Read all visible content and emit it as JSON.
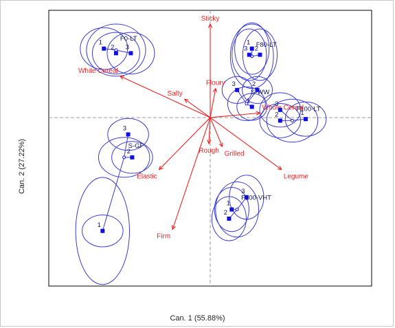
{
  "chart_data": {
    "type": "scatter",
    "subtype": "canonical variate biplot",
    "title": "",
    "xlabel": "Can. 1 (55.88%)",
    "ylabel": "Can. 2 (27.22%)",
    "xlim": [
      -6,
      6
    ],
    "ylim": [
      -5.5,
      3.5
    ],
    "grid": false,
    "legend": "none",
    "colors": {
      "points": "#1010e0",
      "ellipses": "#3a3ad8",
      "vectors": "#ee2222",
      "axis_lines": "#9a9a9a",
      "frame": "#000000"
    },
    "groups": [
      {
        "name": "F0-LT",
        "centroid": [
          -3.5,
          2.2
        ],
        "ellipse_rx": 1.1,
        "ellipse_ry": 0.85,
        "points": [
          {
            "label": "1",
            "x": -3.95,
            "y": 2.25
          },
          {
            "label": "2",
            "x": -3.5,
            "y": 2.1
          },
          {
            "label": "3",
            "x": -2.95,
            "y": 2.1
          }
        ]
      },
      {
        "name": "F80-LT",
        "centroid": [
          1.55,
          2.0
        ],
        "ellipse_rx": 0.8,
        "ellipse_ry": 1.05,
        "points": [
          {
            "label": "1",
            "x": 1.55,
            "y": 2.25
          },
          {
            "label": "2",
            "x": 1.85,
            "y": 2.05
          },
          {
            "label": "3",
            "x": 1.45,
            "y": 2.05
          }
        ]
      },
      {
        "name": "S-WW",
        "centroid": [
          1.35,
          0.45
        ],
        "ellipse_rx": 0.7,
        "ellipse_ry": 0.55,
        "points": [
          {
            "label": "1",
            "x": 1.55,
            "y": 0.35
          },
          {
            "label": "2",
            "x": 1.75,
            "y": 0.9
          },
          {
            "label": "3",
            "x": 1.0,
            "y": 0.9
          }
        ]
      },
      {
        "name": "F100-LT",
        "centroid": [
          3.05,
          -0.1
        ],
        "ellipse_rx": 0.95,
        "ellipse_ry": 0.7,
        "points": [
          {
            "label": "1",
            "x": 3.55,
            "y": -0.05
          },
          {
            "label": "2",
            "x": 2.6,
            "y": -0.1
          },
          {
            "label": "3",
            "x": 2.6,
            "y": 0.25
          }
        ]
      },
      {
        "name": "F100-VHT",
        "centroid": [
          1.0,
          -3.0
        ],
        "ellipse_rx": 0.8,
        "ellipse_ry": 0.9,
        "points": [
          {
            "label": "1",
            "x": 0.8,
            "y": -3.0
          },
          {
            "label": "2",
            "x": 0.7,
            "y": -3.3
          },
          {
            "label": "3",
            "x": 1.35,
            "y": -2.6
          }
        ]
      },
      {
        "name": "S-GF",
        "centroid": [
          -3.2,
          -1.3
        ],
        "ellipse_rx": 0.95,
        "ellipse_ry": 0.65,
        "points": [
          {
            "label": "1",
            "x": -4.0,
            "y": -3.7
          },
          {
            "label": "2",
            "x": -2.9,
            "y": -1.3
          },
          {
            "label": "3",
            "x": -3.05,
            "y": -0.55
          }
        ]
      }
    ],
    "vectors": [
      {
        "label": "Sticky",
        "x": 0.0,
        "y": 3.05
      },
      {
        "label": "White Cereal",
        "x": -3.35,
        "y": 1.35
      },
      {
        "label": "Salty",
        "x": -0.95,
        "y": 0.6
      },
      {
        "label": "Floury",
        "x": 0.2,
        "y": 0.95
      },
      {
        "label": "Whole Cereal",
        "x": 1.85,
        "y": 0.15
      },
      {
        "label": "Rough",
        "x": -0.05,
        "y": -0.85
      },
      {
        "label": "Grilled",
        "x": 0.45,
        "y": -0.95
      },
      {
        "label": "Legume",
        "x": 2.65,
        "y": -1.7
      },
      {
        "label": "Elastic",
        "x": -1.9,
        "y": -1.7
      },
      {
        "label": "Firm",
        "x": -1.4,
        "y": -3.65
      }
    ]
  }
}
